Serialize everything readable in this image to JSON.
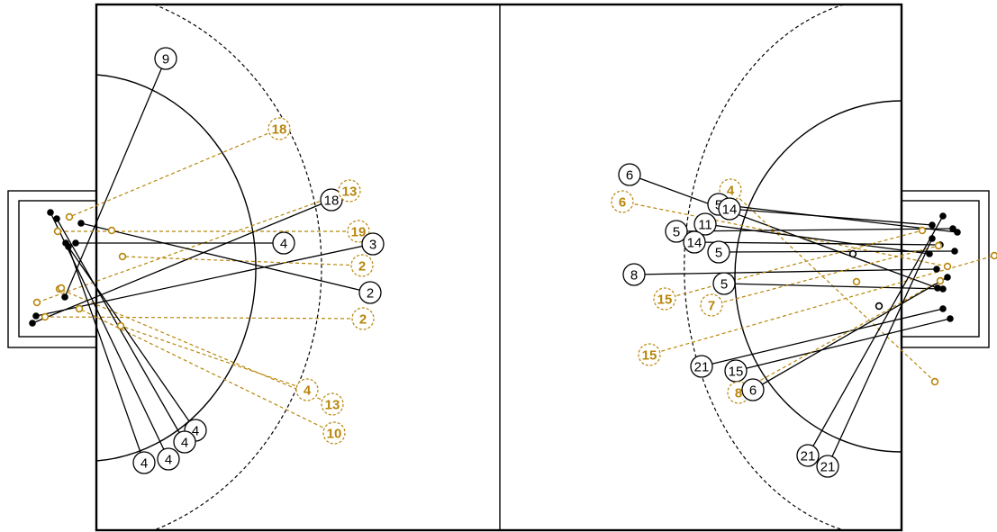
{
  "chart_data": {
    "type": "scatter",
    "title": "",
    "colors": {
      "made": "#000000",
      "missed": "#b8860b"
    },
    "legend": "none",
    "grid": false,
    "shots": [
      {
        "side": "left",
        "player": "9",
        "from": [
          184,
          65
        ],
        "to": [
          72,
          330
        ],
        "result": "made"
      },
      {
        "side": "left",
        "player": "18",
        "from": [
          310,
          143
        ],
        "to": [
          77,
          241
        ],
        "result": "missed"
      },
      {
        "side": "left",
        "player": "18",
        "from": [
          368,
          222
        ],
        "to": [
          36,
          359
        ],
        "result": "made"
      },
      {
        "side": "left",
        "player": "13",
        "from": [
          388,
          212
        ],
        "to": [
          41,
          336
        ],
        "result": "missed"
      },
      {
        "side": "left",
        "player": "4",
        "from": [
          315,
          270
        ],
        "to": [
          84,
          270
        ],
        "result": "made"
      },
      {
        "side": "left",
        "player": "19",
        "from": [
          398,
          257
        ],
        "to": [
          64,
          257
        ],
        "result": "missed"
      },
      {
        "side": "left",
        "player": "3",
        "from": [
          414,
          271
        ],
        "to": [
          40,
          351
        ],
        "result": "made"
      },
      {
        "side": "left",
        "player": "2",
        "from": [
          402,
          295
        ],
        "to": [
          136,
          285
        ],
        "result": "missed"
      },
      {
        "side": "left",
        "player": "2",
        "from": [
          411,
          325
        ],
        "to": [
          90,
          248
        ],
        "result": "made"
      },
      {
        "side": "left",
        "player": "2",
        "from": [
          403,
          354
        ],
        "to": [
          50,
          352
        ],
        "result": "missed"
      },
      {
        "side": "left",
        "player": "4",
        "from": [
          341,
          433
        ],
        "to": [
          134,
          362
        ],
        "result": "missed"
      },
      {
        "side": "left",
        "player": "13",
        "from": [
          369,
          449
        ],
        "to": [
          66,
          321
        ],
        "result": "missed"
      },
      {
        "side": "left",
        "player": "10",
        "from": [
          371,
          481
        ],
        "to": [
          88,
          343
        ],
        "result": "missed"
      },
      {
        "side": "left",
        "player": "4",
        "from": [
          217,
          478
        ],
        "to": [
          73,
          270
        ],
        "result": "made"
      },
      {
        "side": "left",
        "player": "4",
        "from": [
          205,
          491
        ],
        "to": [
          63,
          243
        ],
        "result": "made"
      },
      {
        "side": "left",
        "player": "4",
        "from": [
          187,
          510
        ],
        "to": [
          56,
          236
        ],
        "result": "made"
      },
      {
        "side": "left",
        "player": "4",
        "from": [
          160,
          514
        ],
        "to": [
          76,
          274
        ],
        "result": "made"
      },
      {
        "side": "right",
        "player": "6",
        "from": [
          699,
          194
        ],
        "to": [
          1041,
          320
        ],
        "result": "made"
      },
      {
        "side": "right",
        "player": "6",
        "from": [
          691,
          224
        ],
        "to": [
          1052,
          296
        ],
        "result": "missed"
      },
      {
        "side": "right",
        "player": "4",
        "from": [
          811,
          211
        ],
        "to": [
          1038,
          424
        ],
        "result": "missed"
      },
      {
        "side": "right",
        "player": "5",
        "from": [
          798,
          227
        ],
        "to": [
          1063,
          258
        ],
        "result": "made"
      },
      {
        "side": "right",
        "player": "14",
        "from": [
          810,
          232
        ],
        "to": [
          1035,
          250
        ],
        "result": "made"
      },
      {
        "side": "right",
        "player": "11",
        "from": [
          783,
          249
        ],
        "to": [
          1032,
          282
        ],
        "result": "made"
      },
      {
        "side": "right",
        "player": "5",
        "from": [
          751,
          257
        ],
        "to": [
          1058,
          254
        ],
        "result": "made"
      },
      {
        "side": "right",
        "player": "14",
        "from": [
          771,
          269
        ],
        "to": [
          1044,
          272
        ],
        "result": "made"
      },
      {
        "side": "right",
        "player": "5",
        "from": [
          798,
          280
        ],
        "to": [
          1060,
          279
        ],
        "result": "made"
      },
      {
        "side": "right",
        "player": "8",
        "from": [
          704,
          305
        ],
        "to": [
          1040,
          299
        ],
        "result": "made"
      },
      {
        "side": "right",
        "player": "5",
        "from": [
          804,
          315
        ],
        "to": [
          1047,
          321
        ],
        "result": "made"
      },
      {
        "side": "right",
        "player": "15",
        "from": [
          738,
          332
        ],
        "to": [
          1024,
          256
        ],
        "result": "missed"
      },
      {
        "side": "right",
        "player": "7",
        "from": [
          790,
          339
        ],
        "to": [
          1042,
          273
        ],
        "result": "missed"
      },
      {
        "side": "right",
        "player": "15",
        "from": [
          721,
          394
        ],
        "to": [
          1104,
          284
        ],
        "result": "missed"
      },
      {
        "side": "right",
        "player": "21",
        "from": [
          779,
          407
        ],
        "to": [
          1047,
          343
        ],
        "result": "made"
      },
      {
        "side": "right",
        "player": "15",
        "from": [
          817,
          412
        ],
        "to": [
          1055,
          354
        ],
        "result": "made"
      },
      {
        "side": "right",
        "player": "8",
        "from": [
          820,
          436
        ],
        "to": [
          1044,
          312
        ],
        "result": "missed"
      },
      {
        "side": "right",
        "player": "6",
        "from": [
          836,
          433
        ],
        "to": [
          1052,
          308
        ],
        "result": "made"
      },
      {
        "side": "right",
        "player": "21",
        "from": [
          897,
          506
        ],
        "to": [
          1047,
          240
        ],
        "result": "made"
      },
      {
        "side": "right",
        "player": "21",
        "from": [
          919,
          518
        ],
        "to": [
          1035,
          265
        ],
        "result": "made"
      }
    ],
    "extra_markers": [
      {
        "pos": [
          124,
          256
        ],
        "result": "missed"
      },
      {
        "pos": [
          68,
          320
        ],
        "result": "missed"
      },
      {
        "pos": [
          947,
          282
        ],
        "result": "made-open"
      },
      {
        "pos": [
          976,
          340
        ],
        "result": "made-open"
      },
      {
        "pos": [
          951,
          313
        ],
        "result": "missed"
      }
    ]
  }
}
